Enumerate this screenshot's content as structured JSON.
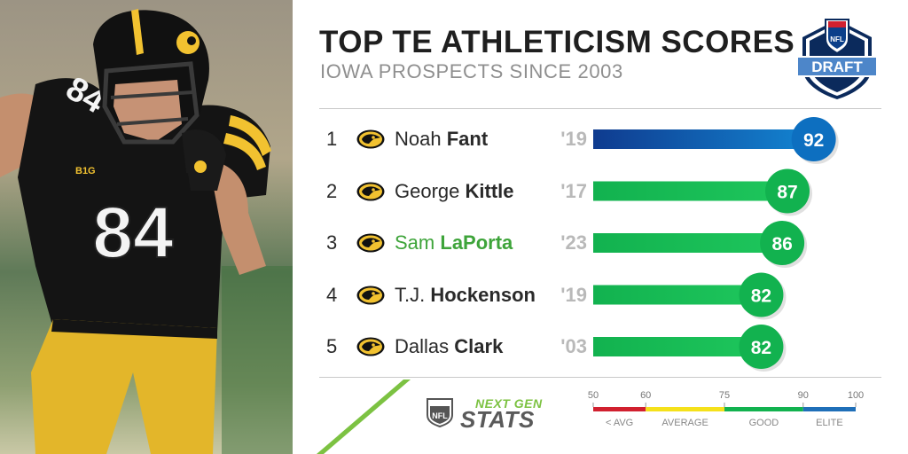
{
  "header": {
    "title": "TOP TE ATHLETICISM SCORES",
    "subtitle": "IOWA PROSPECTS SINCE 2003",
    "draft_logo": {
      "shield_text": "NFL",
      "banner_text": "DRAFT"
    }
  },
  "colors": {
    "elite": "#0d6fc0",
    "good": "#12b24f",
    "average": "#f5e11b",
    "below_avg": "#d1202f",
    "highlight_name": "#3ea43a"
  },
  "chart_data": {
    "type": "bar",
    "orientation": "horizontal",
    "title": "TOP TE ATHLETICISM SCORES",
    "subtitle": "IOWA PROSPECTS SINCE 2003",
    "xlim": [
      50,
      100
    ],
    "rows": [
      {
        "rank": "1",
        "first": "Noah",
        "last": "Fant",
        "year": "'19",
        "score": 92,
        "tier": "elite",
        "highlight": false
      },
      {
        "rank": "2",
        "first": "George",
        "last": "Kittle",
        "year": "'17",
        "score": 87,
        "tier": "good",
        "highlight": false
      },
      {
        "rank": "3",
        "first": "Sam",
        "last": "LaPorta",
        "year": "'23",
        "score": 86,
        "tier": "good",
        "highlight": true
      },
      {
        "rank": "4",
        "first": "T.J.",
        "last": "Hockenson",
        "year": "'19",
        "score": 82,
        "tier": "good",
        "highlight": false
      },
      {
        "rank": "5",
        "first": "Dallas",
        "last": "Clark",
        "year": "'03",
        "score": 82,
        "tier": "good",
        "highlight": false
      }
    ],
    "scale": {
      "ticks": [
        {
          "value": 50,
          "label": "50"
        },
        {
          "value": 60,
          "label": "60"
        },
        {
          "value": 75,
          "label": "75"
        },
        {
          "value": 90,
          "label": "90"
        },
        {
          "value": 100,
          "label": "100"
        }
      ],
      "segments": [
        {
          "from": 50,
          "to": 60,
          "label": "< AVG",
          "color": "#d1202f"
        },
        {
          "from": 60,
          "to": 75,
          "label": "AVERAGE",
          "color": "#f5e11b"
        },
        {
          "from": 75,
          "to": 90,
          "label": "GOOD",
          "color": "#12b24f"
        },
        {
          "from": 90,
          "to": 100,
          "label": "ELITE",
          "color": "#1f6fb8"
        }
      ]
    }
  },
  "branding": {
    "ngs_next": "NEXT GEN",
    "ngs_stats": "STATS",
    "nfl_shield": "NFL"
  },
  "photo": {
    "jersey_number": "84",
    "conference_patch": "B1G"
  }
}
